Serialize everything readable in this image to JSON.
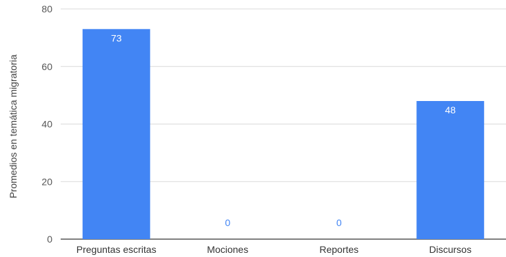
{
  "chart_data": {
    "type": "bar",
    "categories": [
      "Preguntas escritas",
      "Mociones",
      "Reportes",
      "Discursos"
    ],
    "values": [
      73,
      0,
      0,
      48
    ],
    "ylabel": "Promedios en temática migratoria",
    "xlabel": "",
    "ylim": [
      0,
      80
    ],
    "yticks": [
      0,
      20,
      40,
      60,
      80
    ],
    "grid": true,
    "legend": "none",
    "data_labels": [
      "73",
      "0",
      "0",
      "48"
    ],
    "colors": {
      "bar": "#4285f4",
      "label_inside": "#ffffff",
      "label_outside": "#4285f4"
    }
  }
}
